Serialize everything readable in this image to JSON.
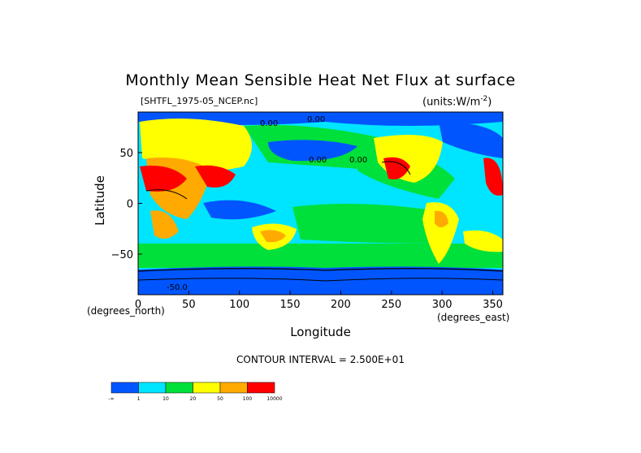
{
  "chart_data": {
    "type": "heatmap",
    "title": "Monthly Mean Sensible Heat Net Flux at surface",
    "dataset_label": "[SHTFL_1975-05_NCEP.nc]",
    "units": "(units:W/m^-2)",
    "xlabel": "Longitude",
    "ylabel": "Latitude",
    "x_unit": "(degrees_east)",
    "y_unit": "(degrees_north)",
    "xlim": [
      0,
      360
    ],
    "ylim": [
      -90,
      90
    ],
    "x_ticks": [
      "0",
      "50",
      "100",
      "150",
      "200",
      "250",
      "300",
      "350"
    ],
    "y_ticks": [
      "50",
      "0",
      "-50"
    ],
    "contour_interval": "CONTOUR INTERVAL = 2.500E+01",
    "contour_labels": [
      "0.00",
      "0.00",
      "0.00",
      "0.00",
      "-50.0"
    ],
    "colorbar": {
      "bounds": [
        "-∞",
        "1",
        "10",
        "20",
        "50",
        "100",
        "10000"
      ],
      "colors": [
        "#0055ff",
        "#00e5ff",
        "#00e03a",
        "#ffff00",
        "#ffaa00",
        "#ff0000"
      ]
    }
  }
}
